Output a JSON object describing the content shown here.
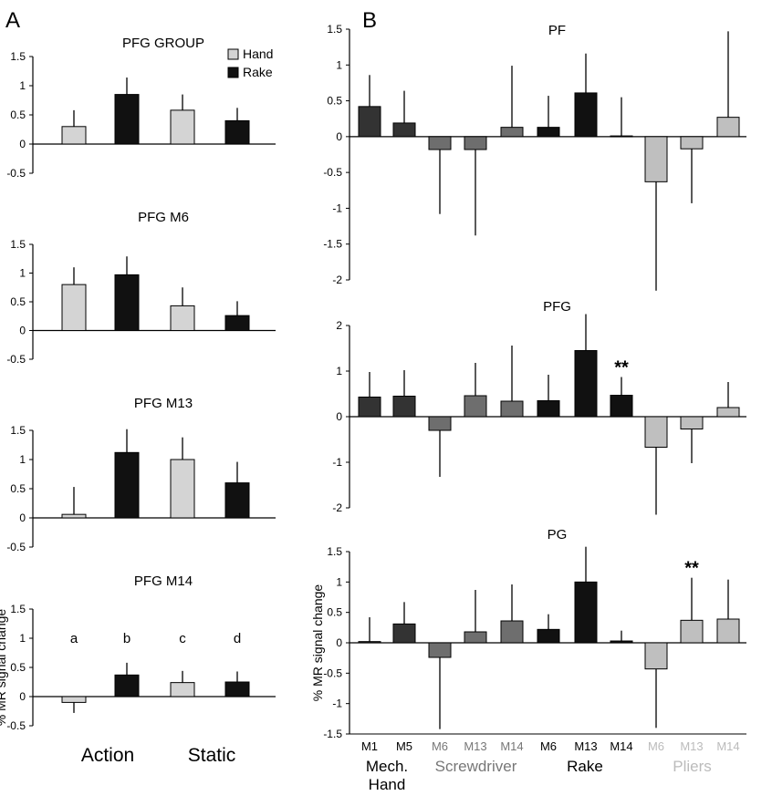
{
  "figure": {
    "panel_labels": [
      "A",
      "B"
    ],
    "ylabel": "% MR signal change",
    "condition_labels": [
      "Action",
      "Static"
    ],
    "colors": {
      "hand": "#d4d4d4",
      "rake": "#111111",
      "mech_hand": "#333333",
      "screwdriver": "#6e6e6e",
      "pliers": "#bfbfbf",
      "screwdriver_text": "#777777",
      "pliers_text": "#bbbbbb"
    },
    "groups": [
      {
        "name": "Mech.\nHand",
        "lines": [
          "Mech.",
          "Hand"
        ],
        "kind": "mech_hand",
        "animals": [
          "M1",
          "M5"
        ]
      },
      {
        "name": "Screwdriver",
        "lines": [
          "Screwdriver"
        ],
        "kind": "screwdriver",
        "animals": [
          "M6",
          "M13",
          "M14"
        ]
      },
      {
        "name": "Rake",
        "lines": [
          "Rake"
        ],
        "kind": "rake",
        "animals": [
          "M6",
          "M13",
          "M14"
        ]
      },
      {
        "name": "Pliers",
        "lines": [
          "Pliers"
        ],
        "kind": "pliers",
        "animals": [
          "M6",
          "M13",
          "M14"
        ]
      }
    ]
  },
  "chart_data": [
    {
      "type": "bar",
      "panel": "A",
      "title": "PFG GROUP",
      "categories": [
        "Action Hand",
        "Action Rake",
        "Static Hand",
        "Static Rake"
      ],
      "values": [
        0.3,
        0.85,
        0.58,
        0.4
      ],
      "errors": [
        0.28,
        0.29,
        0.27,
        0.22
      ],
      "colors": [
        "hand",
        "rake",
        "hand",
        "rake"
      ],
      "legend": [
        "Hand",
        "Rake"
      ],
      "legend_position": "top-right",
      "ylim": [
        -0.5,
        1.5
      ],
      "yticks": [
        "1.5",
        "1",
        "0.5",
        "0",
        "-0.5"
      ]
    },
    {
      "type": "bar",
      "panel": "A",
      "title": "PFG M6",
      "categories": [
        "Action Hand",
        "Action Rake",
        "Static Hand",
        "Static Rake"
      ],
      "values": [
        0.8,
        0.97,
        0.43,
        0.26
      ],
      "errors": [
        0.3,
        0.32,
        0.32,
        0.25
      ],
      "colors": [
        "hand",
        "rake",
        "hand",
        "rake"
      ],
      "ylim": [
        -0.5,
        1.5
      ],
      "yticks": [
        "1.5",
        "1",
        "0.5",
        "0",
        "-0.5"
      ]
    },
    {
      "type": "bar",
      "panel": "A",
      "title": "PFG M13",
      "categories": [
        "Action Hand",
        "Action Rake",
        "Static Hand",
        "Static Rake"
      ],
      "values": [
        0.06,
        1.12,
        1.0,
        0.6
      ],
      "errors": [
        0.47,
        0.4,
        0.38,
        0.36
      ],
      "colors": [
        "hand",
        "rake",
        "hand",
        "rake"
      ],
      "ylim": [
        -0.5,
        1.5
      ],
      "yticks": [
        "1.5",
        "1",
        "0.5",
        "0",
        "-0.5"
      ]
    },
    {
      "type": "bar",
      "panel": "A",
      "title": "PFG M14",
      "categories": [
        "Action Hand",
        "Action Rake",
        "Static Hand",
        "Static Rake"
      ],
      "values": [
        -0.1,
        0.37,
        0.24,
        0.25
      ],
      "errors": [
        0.18,
        0.21,
        0.2,
        0.18
      ],
      "colors": [
        "hand",
        "rake",
        "hand",
        "rake"
      ],
      "bar_letters": [
        "a",
        "b",
        "c",
        "d"
      ],
      "ylabel": "% MR signal change",
      "ylim": [
        -0.5,
        1.5
      ],
      "yticks": [
        "1.5",
        "1",
        "0.5",
        "0",
        "-0.5"
      ]
    },
    {
      "type": "bar",
      "panel": "B",
      "title": "PF",
      "categories": [
        "M1",
        "M5",
        "M6",
        "M13",
        "M14",
        "M6",
        "M13",
        "M14",
        "M6",
        "M13",
        "M14"
      ],
      "values": [
        0.42,
        0.19,
        -0.18,
        -0.18,
        0.13,
        0.13,
        0.61,
        0.01,
        -0.63,
        -0.17,
        0.27
      ],
      "errors": [
        0.44,
        0.45,
        0.9,
        1.2,
        0.86,
        0.44,
        0.55,
        0.54,
        1.52,
        0.76,
        1.2
      ],
      "colors": [
        "mech_hand",
        "mech_hand",
        "screwdriver",
        "screwdriver",
        "screwdriver",
        "rake",
        "rake",
        "rake",
        "pliers",
        "pliers",
        "pliers"
      ],
      "ylim": [
        -2,
        1.5
      ],
      "yticks": [
        "1.5",
        "1",
        "0.5",
        "0",
        "-0.5",
        "-1",
        "-1.5",
        "-2"
      ]
    },
    {
      "type": "bar",
      "panel": "B",
      "title": "PFG",
      "categories": [
        "M1",
        "M5",
        "M6",
        "M13",
        "M14",
        "M6",
        "M13",
        "M14",
        "M6",
        "M13",
        "M14"
      ],
      "values": [
        0.43,
        0.45,
        -0.3,
        0.46,
        0.34,
        0.35,
        1.45,
        0.47,
        -0.67,
        -0.27,
        0.2
      ],
      "errors": [
        0.55,
        0.57,
        1.02,
        0.72,
        1.22,
        0.57,
        0.8,
        0.4,
        1.48,
        0.75,
        0.56
      ],
      "colors": [
        "mech_hand",
        "mech_hand",
        "screwdriver",
        "screwdriver",
        "screwdriver",
        "rake",
        "rake",
        "rake",
        "pliers",
        "pliers",
        "pliers"
      ],
      "significance": [
        "",
        "",
        "",
        "",
        "",
        "",
        "",
        "**",
        "",
        "",
        ""
      ],
      "ylim": [
        -2,
        2
      ],
      "yticks": [
        "2",
        "1",
        "0",
        "-1",
        "-2"
      ]
    },
    {
      "type": "bar",
      "panel": "B",
      "title": "PG",
      "categories": [
        "M1",
        "M5",
        "M6",
        "M13",
        "M14",
        "M6",
        "M13",
        "M14",
        "M6",
        "M13",
        "M14"
      ],
      "values": [
        0.02,
        0.31,
        -0.24,
        0.18,
        0.36,
        0.22,
        1.0,
        0.03,
        -0.43,
        0.37,
        0.39
      ],
      "errors": [
        0.4,
        0.36,
        1.18,
        0.69,
        0.6,
        0.25,
        0.58,
        0.17,
        0.97,
        0.7,
        0.65
      ],
      "colors": [
        "mech_hand",
        "mech_hand",
        "screwdriver",
        "screwdriver",
        "screwdriver",
        "rake",
        "rake",
        "rake",
        "pliers",
        "pliers",
        "pliers"
      ],
      "significance": [
        "",
        "",
        "",
        "",
        "",
        "",
        "",
        "",
        "",
        "**",
        ""
      ],
      "ylabel": "% MR signal change",
      "ylim": [
        -1.5,
        1.5
      ],
      "yticks": [
        "1.5",
        "1",
        "0.5",
        "0",
        "-0.5",
        "-1",
        "-1.5"
      ]
    }
  ]
}
